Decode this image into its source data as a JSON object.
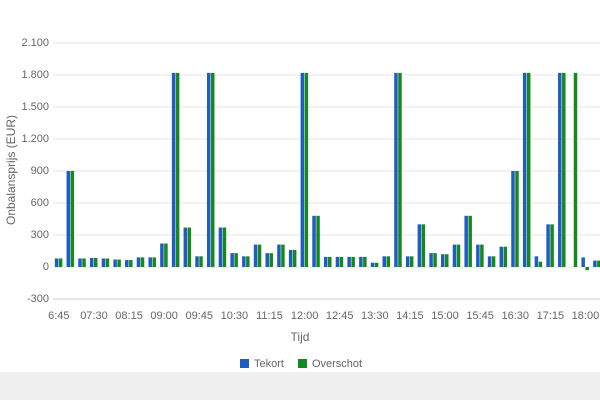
{
  "chart_data": {
    "type": "bar",
    "x_label": "Tijd",
    "y_label": "Onbalansprijs (EUR)",
    "categories": [
      "6:45",
      null,
      null,
      "07:30",
      null,
      null,
      "08:15",
      null,
      null,
      "09:00",
      null,
      null,
      "09:45",
      null,
      null,
      "10:30",
      null,
      null,
      "11:15",
      null,
      null,
      "12:00",
      null,
      null,
      "12:45",
      null,
      null,
      "13:30",
      null,
      null,
      "14:15",
      null,
      null,
      "15:00",
      null,
      null,
      "15:45",
      null,
      null,
      "16:30",
      null,
      null,
      "17:15",
      null,
      null,
      "18:00",
      null
    ],
    "series": [
      {
        "name": "Tekort",
        "color": "#1f5cc4",
        "values": [
          80,
          900,
          80,
          85,
          80,
          70,
          65,
          90,
          90,
          220,
          1820,
          370,
          100,
          1820,
          370,
          130,
          100,
          210,
          130,
          210,
          160,
          1820,
          480,
          95,
          95,
          95,
          95,
          40,
          100,
          1820,
          100,
          400,
          130,
          120,
          210,
          480,
          210,
          100,
          190,
          900,
          1820,
          100,
          400,
          1820,
          0,
          90,
          60
        ]
      },
      {
        "name": "Overschot",
        "color": "#14891e",
        "values": [
          80,
          900,
          80,
          85,
          80,
          70,
          65,
          90,
          90,
          220,
          1820,
          370,
          100,
          1820,
          370,
          130,
          100,
          210,
          130,
          210,
          160,
          1820,
          480,
          95,
          95,
          95,
          95,
          40,
          100,
          1820,
          100,
          400,
          130,
          120,
          210,
          480,
          210,
          100,
          190,
          900,
          1820,
          50,
          400,
          1820,
          1820,
          -30,
          60
        ]
      }
    ],
    "ylim": [
      -300,
      2100
    ],
    "yticks": [
      -300,
      0,
      300,
      600,
      900,
      {
        "value": 1200,
        "label": "1.200"
      },
      {
        "value": 1500,
        "label": "1.500"
      },
      {
        "value": 1800,
        "label": "1.800"
      },
      {
        "value": 2100,
        "label": "2.100"
      }
    ],
    "grid": true,
    "legend": "bottom"
  }
}
